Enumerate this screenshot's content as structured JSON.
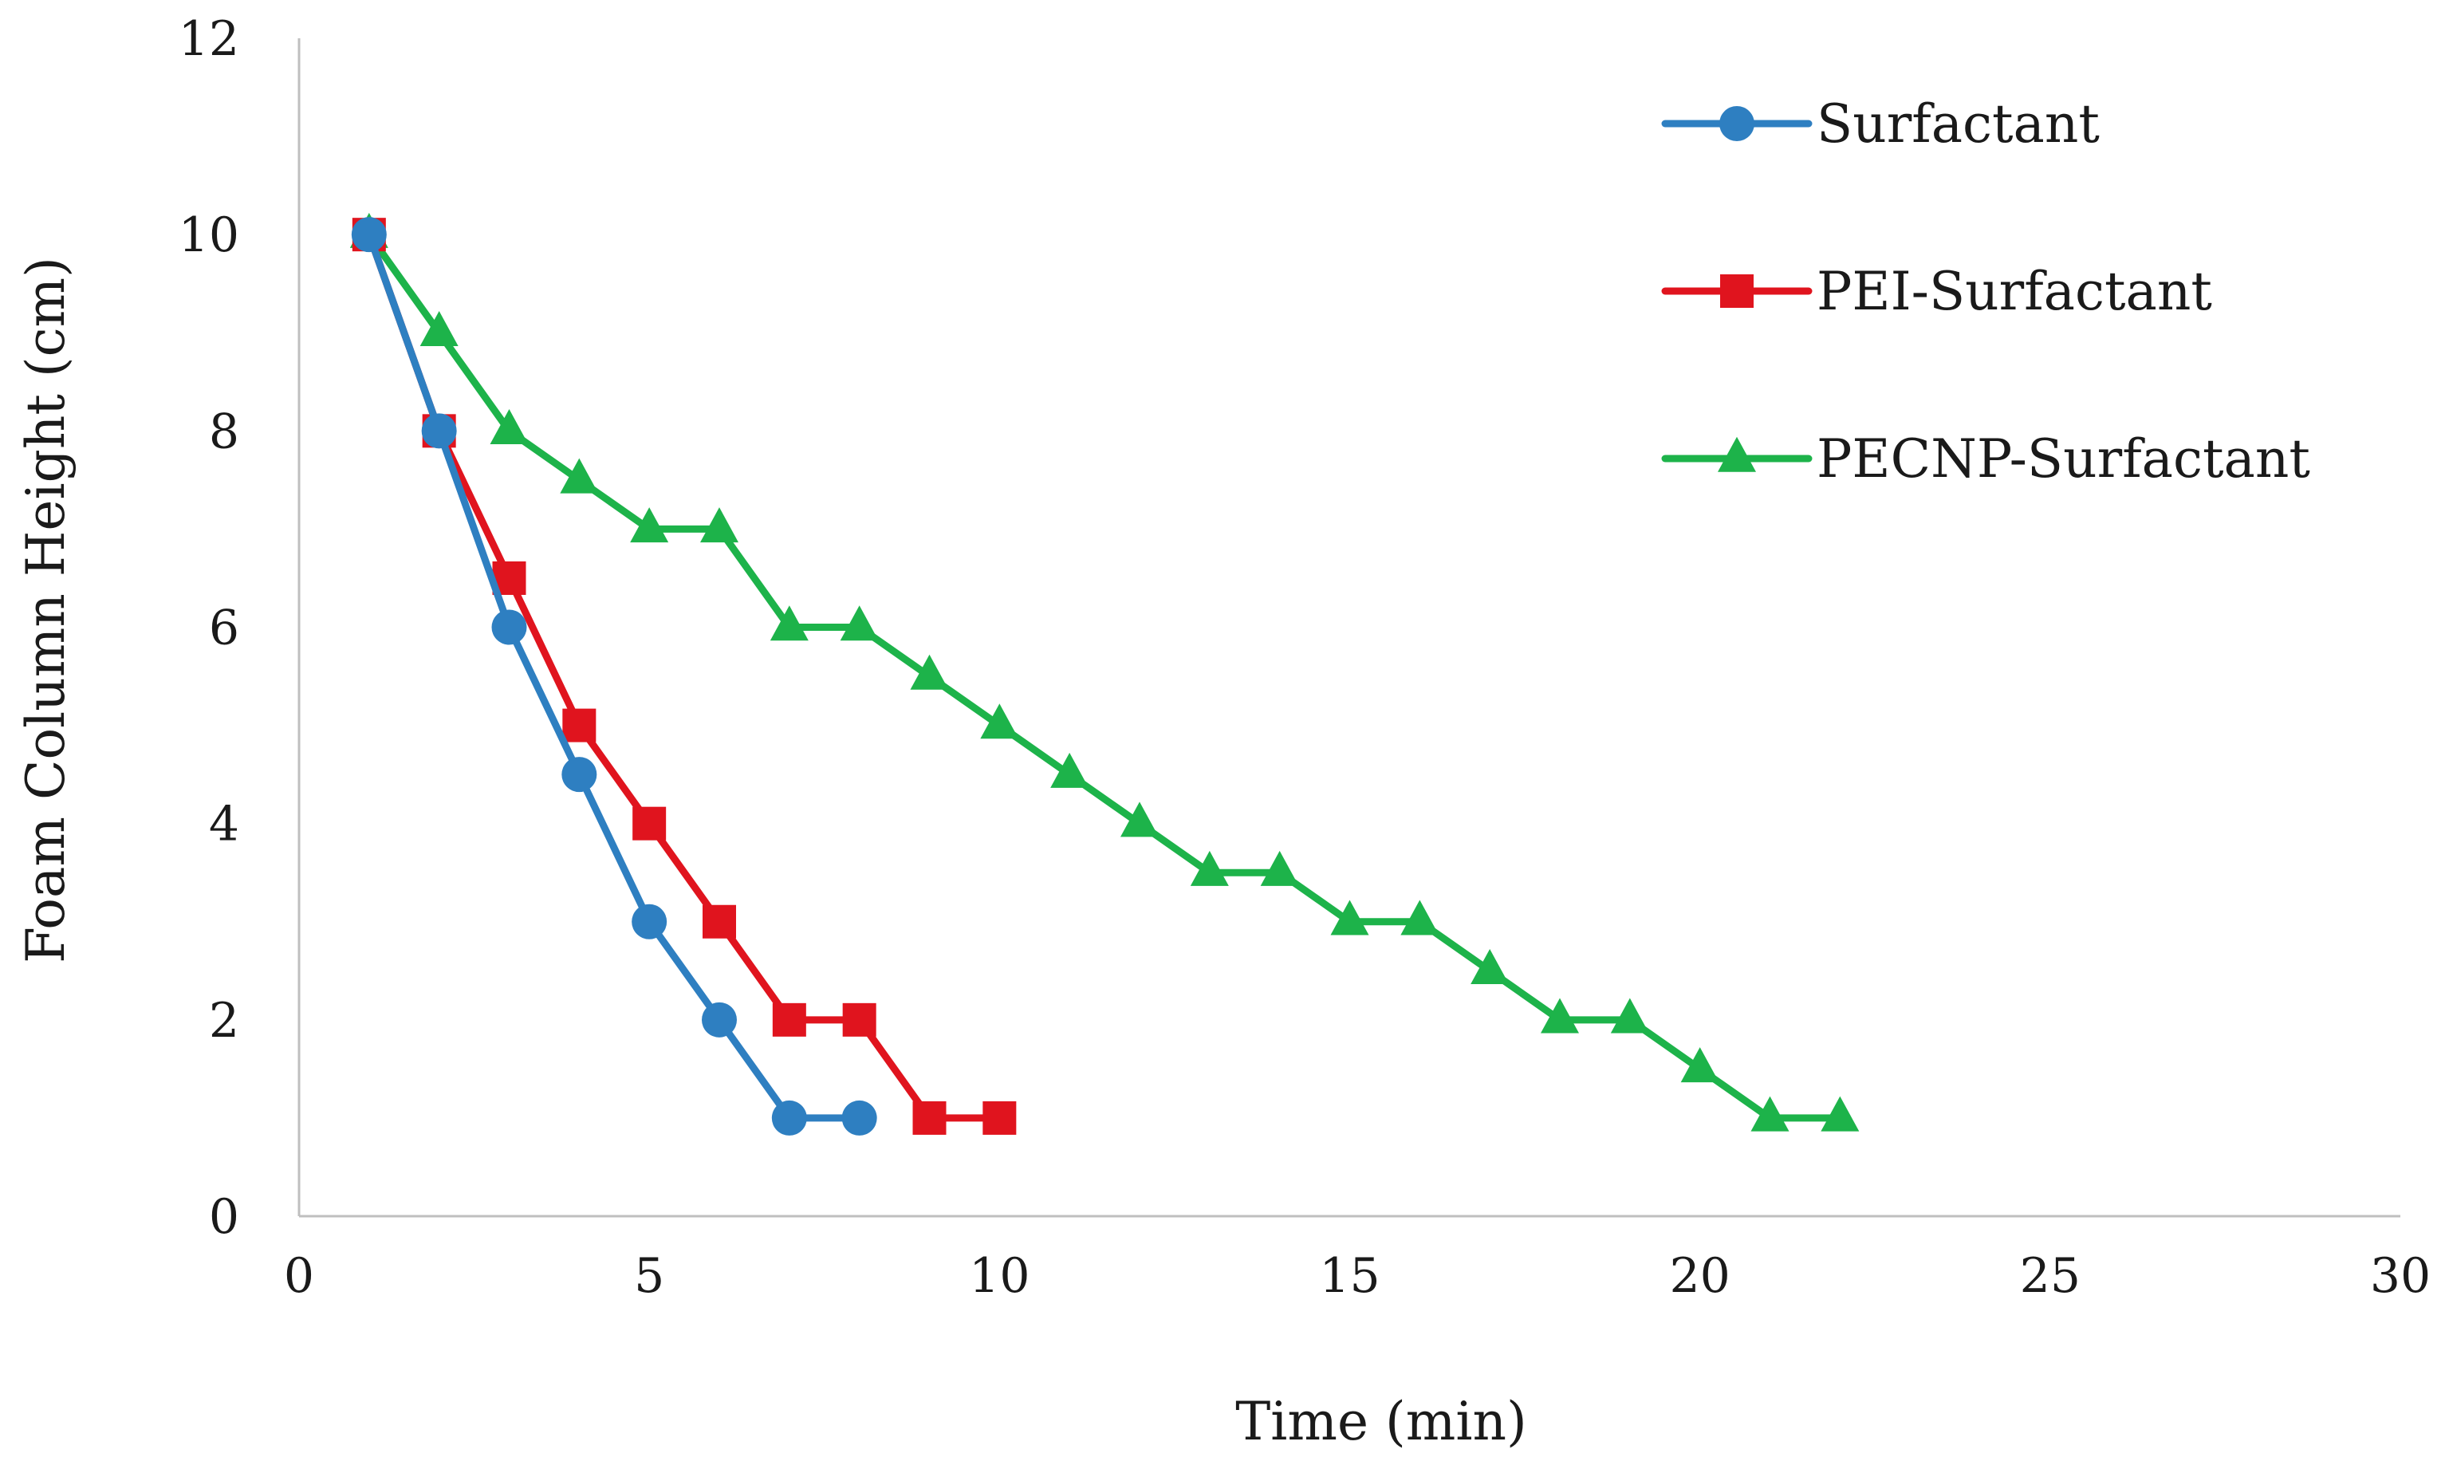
{
  "chart_data": {
    "type": "line",
    "title": "",
    "xlabel": "Time (min)",
    "ylabel": "Foam Column Height (cm)",
    "xlim": [
      0,
      30
    ],
    "ylim": [
      0,
      12
    ],
    "xticks": [
      0,
      5,
      10,
      15,
      20,
      25,
      30
    ],
    "yticks": [
      0,
      2,
      4,
      6,
      8,
      10,
      12
    ],
    "grid": false,
    "legend_position": "top-right",
    "series": [
      {
        "name": "Surfactant",
        "color": "#2e7fc1",
        "marker": "circle",
        "x": [
          1,
          2,
          3,
          4,
          5,
          6,
          7,
          8
        ],
        "y": [
          10,
          8,
          6,
          4.5,
          3,
          2,
          1,
          1
        ]
      },
      {
        "name": "PEI-Surfactant",
        "color": "#e0141e",
        "marker": "square",
        "x": [
          1,
          2,
          3,
          4,
          5,
          6,
          7,
          8,
          9,
          10
        ],
        "y": [
          10,
          8,
          6.5,
          5,
          4,
          3,
          2,
          2,
          1,
          1
        ]
      },
      {
        "name": "PECNP-Surfactant",
        "color": "#1db34a",
        "marker": "triangle",
        "x": [
          1,
          2,
          3,
          4,
          5,
          6,
          7,
          8,
          9,
          10,
          11,
          12,
          13,
          14,
          15,
          16,
          17,
          18,
          19,
          20,
          21,
          22
        ],
        "y": [
          10,
          9,
          8,
          7.5,
          7,
          7,
          6,
          6,
          5.5,
          5,
          4.5,
          4,
          3.5,
          3.5,
          3,
          3,
          2.5,
          2,
          2,
          1.5,
          1,
          1
        ]
      }
    ]
  }
}
